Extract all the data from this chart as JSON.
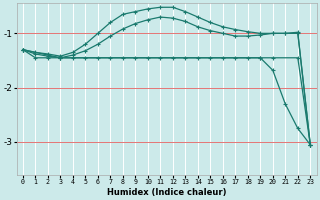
{
  "xlabel": "Humidex (Indice chaleur)",
  "bg_color": "#cceaea",
  "grid_color": "#ffffff",
  "red_line_color": "#e06060",
  "line_color": "#1a7a6e",
  "xlim": [
    -0.5,
    23.5
  ],
  "ylim": [
    -3.6,
    -0.45
  ],
  "yticks": [
    -3,
    -2,
    -1
  ],
  "xticks": [
    0,
    1,
    2,
    3,
    4,
    5,
    6,
    7,
    8,
    9,
    10,
    11,
    12,
    13,
    14,
    15,
    16,
    17,
    18,
    19,
    20,
    21,
    22,
    23
  ],
  "series1_x": [
    0,
    1,
    2,
    3,
    4,
    5,
    6,
    7,
    8,
    9,
    10,
    11,
    12,
    13,
    14,
    15,
    16,
    17,
    18,
    19,
    20,
    22,
    23
  ],
  "series1_y": [
    -1.3,
    -1.45,
    -1.45,
    -1.45,
    -1.45,
    -1.45,
    -1.45,
    -1.45,
    -1.45,
    -1.45,
    -1.45,
    -1.45,
    -1.45,
    -1.45,
    -1.45,
    -1.45,
    -1.45,
    -1.45,
    -1.45,
    -1.45,
    -1.45,
    -1.45,
    -3.05
  ],
  "series2_x": [
    0,
    1,
    2,
    3,
    4,
    5,
    6,
    7,
    8,
    9,
    10,
    11,
    12,
    13,
    14,
    15,
    16,
    17,
    18,
    19,
    20,
    21,
    22,
    23
  ],
  "series2_y": [
    -1.3,
    -1.35,
    -1.38,
    -1.42,
    -1.35,
    -1.2,
    -1.0,
    -0.8,
    -0.65,
    -0.6,
    -0.55,
    -0.52,
    -0.52,
    -0.6,
    -0.7,
    -0.8,
    -0.88,
    -0.93,
    -0.97,
    -1.0,
    -1.0,
    -1.0,
    -1.0,
    -3.05
  ],
  "series3_x": [
    0,
    1,
    2,
    3,
    4,
    5,
    6,
    7,
    8,
    9,
    10,
    11,
    12,
    13,
    14,
    15,
    16,
    17,
    18,
    19,
    20,
    21,
    22,
    23
  ],
  "series3_y": [
    -1.3,
    -1.38,
    -1.42,
    -1.45,
    -1.4,
    -1.32,
    -1.2,
    -1.05,
    -0.92,
    -0.82,
    -0.75,
    -0.7,
    -0.72,
    -0.78,
    -0.88,
    -0.95,
    -1.0,
    -1.05,
    -1.05,
    -1.03,
    -1.0,
    -1.0,
    -0.98,
    -3.05
  ],
  "series4_x": [
    0,
    3,
    19,
    20,
    21,
    22,
    23
  ],
  "series4_y": [
    -1.3,
    -1.45,
    -1.45,
    -1.68,
    -2.3,
    -2.75,
    -3.05
  ]
}
